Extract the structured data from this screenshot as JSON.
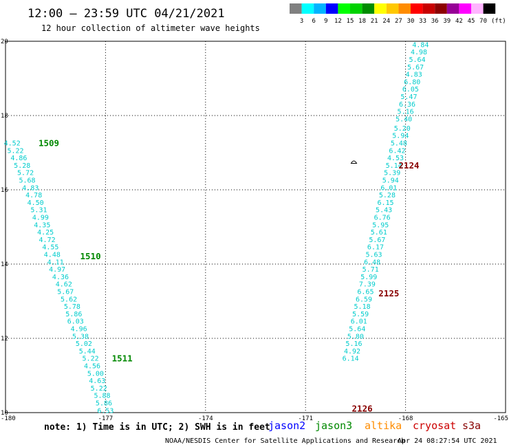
{
  "header": {
    "title": "12:00 – 23:59 UTC 04/21/2021",
    "subtitle": "12 hour collection of altimeter wave heights"
  },
  "color_scale": {
    "unit_label": "(ft)",
    "labels": [
      "3",
      "6",
      "9",
      "12",
      "15",
      "18",
      "21",
      "24",
      "27",
      "30",
      "33",
      "36",
      "39",
      "42",
      "45",
      "70"
    ],
    "colors": [
      "#808080",
      "#00ffff",
      "#00b4ff",
      "#0000ff",
      "#00ff00",
      "#00d200",
      "#008c00",
      "#ffff00",
      "#ffc800",
      "#ff8c00",
      "#ff0000",
      "#c80000",
      "#8c0000",
      "#960096",
      "#ff00ff",
      "#ffb4ff",
      "#000000"
    ]
  },
  "chart_data": {
    "type": "scatter",
    "title": "12:00 – 23:59 UTC 04/21/2021",
    "subtitle": "12 hour collection of altimeter wave heights",
    "xlim": [
      -180,
      -165
    ],
    "ylim": [
      10,
      20
    ],
    "x_ticks": [
      "-180",
      "-177",
      "-174",
      "-171",
      "-168",
      "-165"
    ],
    "y_ticks": [
      "20",
      "18",
      "16",
      "14",
      "12",
      "10"
    ],
    "x_tick_values": [
      -180,
      -177,
      -174,
      -171,
      -168,
      -165
    ],
    "y_tick_values": [
      20,
      18,
      16,
      14,
      12,
      10
    ],
    "grid": true,
    "series": [
      {
        "name": "jason3",
        "color": "#00aaaa",
        "points": [
          {
            "lon": -179.8,
            "lat": 17.25,
            "swh": "4.52"
          },
          {
            "lon": -179.7,
            "lat": 17.05,
            "swh": "5.22"
          },
          {
            "lon": -179.6,
            "lat": 16.85,
            "swh": "4.86"
          },
          {
            "lon": -179.5,
            "lat": 16.65,
            "swh": "5.28"
          },
          {
            "lon": -179.4,
            "lat": 16.45,
            "swh": "5.72"
          },
          {
            "lon": -179.35,
            "lat": 16.25,
            "swh": "5.68"
          },
          {
            "lon": -179.25,
            "lat": 16.05,
            "swh": "4.83"
          },
          {
            "lon": -179.15,
            "lat": 15.85,
            "swh": "4.78"
          },
          {
            "lon": -179.1,
            "lat": 15.65,
            "swh": "4.50"
          },
          {
            "lon": -179.0,
            "lat": 15.45,
            "swh": "5.31"
          },
          {
            "lon": -178.95,
            "lat": 15.25,
            "swh": "4.99"
          },
          {
            "lon": -178.9,
            "lat": 15.05,
            "swh": "4.35"
          },
          {
            "lon": -178.8,
            "lat": 14.85,
            "swh": "4.25"
          },
          {
            "lon": -178.75,
            "lat": 14.65,
            "swh": "4.72"
          },
          {
            "lon": -178.65,
            "lat": 14.45,
            "swh": "4.55"
          },
          {
            "lon": -178.6,
            "lat": 14.25,
            "swh": "4.48"
          },
          {
            "lon": -178.5,
            "lat": 14.05,
            "swh": "4.11"
          },
          {
            "lon": -178.45,
            "lat": 13.85,
            "swh": "4.97"
          },
          {
            "lon": -178.35,
            "lat": 13.65,
            "swh": "4.36"
          },
          {
            "lon": -178.25,
            "lat": 13.45,
            "swh": "4.62"
          },
          {
            "lon": -178.2,
            "lat": 13.25,
            "swh": "5.67"
          },
          {
            "lon": -178.1,
            "lat": 13.05,
            "swh": "5.62"
          },
          {
            "lon": -178.0,
            "lat": 12.85,
            "swh": "5.78"
          },
          {
            "lon": -177.95,
            "lat": 12.65,
            "swh": "5.86"
          },
          {
            "lon": -177.9,
            "lat": 12.45,
            "swh": "6.03"
          },
          {
            "lon": -177.8,
            "lat": 12.25,
            "swh": "4.96"
          },
          {
            "lon": -177.75,
            "lat": 12.05,
            "swh": "5.38"
          },
          {
            "lon": -177.65,
            "lat": 11.85,
            "swh": "5.02"
          },
          {
            "lon": -177.55,
            "lat": 11.65,
            "swh": "5.44"
          },
          {
            "lon": -177.45,
            "lat": 11.45,
            "swh": "5.22"
          },
          {
            "lon": -177.4,
            "lat": 11.25,
            "swh": "4.56"
          },
          {
            "lon": -177.3,
            "lat": 11.05,
            "swh": "5.00"
          },
          {
            "lon": -177.25,
            "lat": 10.85,
            "swh": "4.63"
          },
          {
            "lon": -177.2,
            "lat": 10.65,
            "swh": "5.22"
          },
          {
            "lon": -177.1,
            "lat": 10.45,
            "swh": "5.88"
          },
          {
            "lon": -177.05,
            "lat": 10.25,
            "swh": "5.86"
          },
          {
            "lon": -177.0,
            "lat": 10.05,
            "swh": "6.53"
          }
        ]
      },
      {
        "name": "cryosat",
        "color": "#00aaaa",
        "points": [
          {
            "lon": -167.55,
            "lat": 19.9,
            "swh": "4.84"
          },
          {
            "lon": -167.6,
            "lat": 19.7,
            "swh": "4.98"
          },
          {
            "lon": -167.65,
            "lat": 19.5,
            "swh": "5.64"
          },
          {
            "lon": -167.7,
            "lat": 19.3,
            "swh": "5.67"
          },
          {
            "lon": -167.75,
            "lat": 19.1,
            "swh": "4.83"
          },
          {
            "lon": -167.8,
            "lat": 18.9,
            "swh": "6.80"
          },
          {
            "lon": -167.85,
            "lat": 18.7,
            "swh": "6.05"
          },
          {
            "lon": -167.9,
            "lat": 18.5,
            "swh": "5.47"
          },
          {
            "lon": -167.95,
            "lat": 18.3,
            "swh": "6.36"
          },
          {
            "lon": -168.0,
            "lat": 18.1,
            "swh": "5.16"
          },
          {
            "lon": -168.05,
            "lat": 17.9,
            "swh": "5.40"
          },
          {
            "lon": -168.1,
            "lat": 17.65,
            "swh": "5.20"
          },
          {
            "lon": -168.15,
            "lat": 17.45,
            "swh": "5.94"
          },
          {
            "lon": -168.2,
            "lat": 17.25,
            "swh": "5.48"
          },
          {
            "lon": -168.25,
            "lat": 17.05,
            "swh": "6.42"
          },
          {
            "lon": -168.3,
            "lat": 16.85,
            "swh": "4.53"
          },
          {
            "lon": -168.35,
            "lat": 16.65,
            "swh": "5.14"
          },
          {
            "lon": -168.4,
            "lat": 16.45,
            "swh": "5.39"
          },
          {
            "lon": -168.45,
            "lat": 16.25,
            "swh": "5.94"
          },
          {
            "lon": -168.5,
            "lat": 16.05,
            "swh": "6.01"
          },
          {
            "lon": -168.55,
            "lat": 15.85,
            "swh": "5.28"
          },
          {
            "lon": -168.6,
            "lat": 15.65,
            "swh": "6.15"
          },
          {
            "lon": -168.65,
            "lat": 15.45,
            "swh": "5.43"
          },
          {
            "lon": -168.7,
            "lat": 15.25,
            "swh": "6.76"
          },
          {
            "lon": -168.75,
            "lat": 15.05,
            "swh": "5.95"
          },
          {
            "lon": -168.8,
            "lat": 14.85,
            "swh": "5.61"
          },
          {
            "lon": -168.85,
            "lat": 14.65,
            "swh": "5.67"
          },
          {
            "lon": -168.9,
            "lat": 14.45,
            "swh": "6.17"
          },
          {
            "lon": -168.95,
            "lat": 14.25,
            "swh": "5.63"
          },
          {
            "lon": -169.0,
            "lat": 14.05,
            "swh": "6.48"
          },
          {
            "lon": -169.05,
            "lat": 13.85,
            "swh": "5.71"
          },
          {
            "lon": -169.1,
            "lat": 13.65,
            "swh": "5.99"
          },
          {
            "lon": -169.15,
            "lat": 13.45,
            "swh": "7.39"
          },
          {
            "lon": -169.2,
            "lat": 13.25,
            "swh": "6.65"
          },
          {
            "lon": -169.25,
            "lat": 13.05,
            "swh": "6.59"
          },
          {
            "lon": -169.3,
            "lat": 12.85,
            "swh": "5.18"
          },
          {
            "lon": -169.35,
            "lat": 12.65,
            "swh": "5.59"
          },
          {
            "lon": -169.4,
            "lat": 12.45,
            "swh": "6.01"
          },
          {
            "lon": -169.45,
            "lat": 12.25,
            "swh": "5.64"
          },
          {
            "lon": -169.5,
            "lat": 12.05,
            "swh": "5.80"
          },
          {
            "lon": -169.55,
            "lat": 11.85,
            "swh": "5.16"
          },
          {
            "lon": -169.6,
            "lat": 11.65,
            "swh": "4.92"
          },
          {
            "lon": -169.65,
            "lat": 11.45,
            "swh": "6.14"
          }
        ]
      }
    ],
    "pass_labels": [
      {
        "text": "1509",
        "lon": -178.7,
        "lat": 17.25,
        "color": "#008800"
      },
      {
        "text": "1510",
        "lon": -177.45,
        "lat": 14.2,
        "color": "#008800"
      },
      {
        "text": "1511",
        "lon": -176.5,
        "lat": 11.45,
        "color": "#008800"
      },
      {
        "text": "2124",
        "lon": -167.9,
        "lat": 16.65,
        "color": "#880000"
      },
      {
        "text": "2125",
        "lon": -168.5,
        "lat": 13.2,
        "color": "#880000"
      },
      {
        "text": "2126",
        "lon": -169.3,
        "lat": 10.1,
        "color": "#880000"
      }
    ],
    "island_marker": {
      "lon": -169.55,
      "lat": 16.75
    }
  },
  "footer": {
    "note": "note: 1) Time is in UTC; 2) SWH is in feet",
    "satellites": [
      {
        "name": "jason2",
        "color": "#0000ff"
      },
      {
        "name": "jason3",
        "color": "#008800"
      },
      {
        "name": "altika",
        "color": "#ff8c00"
      },
      {
        "name": "cryosat",
        "color": "#cc0000"
      },
      {
        "name": "s3a",
        "color": "#880000"
      }
    ],
    "credit": "NOAA/NESDIS Center for Satellite Applications and Research",
    "timestamp": "Apr 24 08:27:54 UTC 2021"
  }
}
